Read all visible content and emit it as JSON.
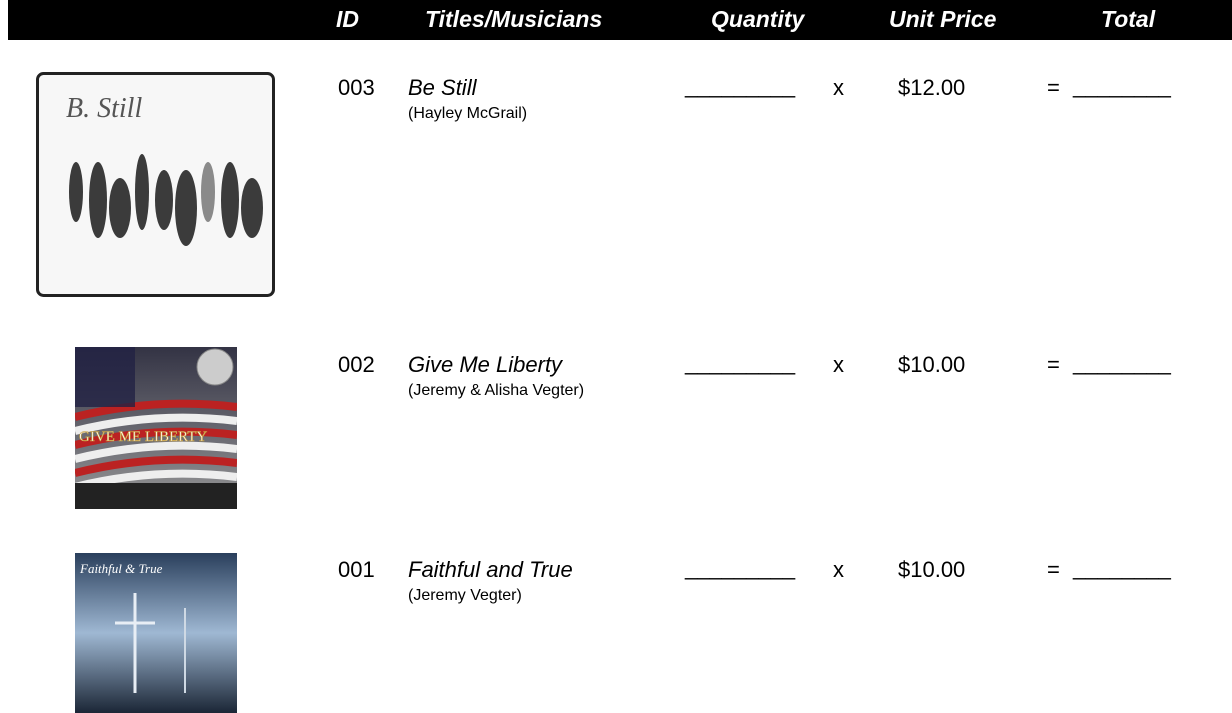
{
  "header": {
    "id": "ID",
    "title": "Titles/Musicians",
    "quantity": "Quantity",
    "unit_price": "Unit Price",
    "total": "Total"
  },
  "items": [
    {
      "cover_text": "B. Still",
      "id": "003",
      "title": "Be Still",
      "musicians": "(Hayley McGrail)",
      "quantity_blank": "_________",
      "times": "x",
      "price": "$12.00",
      "equals": "=",
      "total_blank": "________"
    },
    {
      "cover_text": "GIVE ME LIBERTY",
      "id": "002",
      "title": "Give Me Liberty",
      "musicians": "(Jeremy & Alisha Vegter)",
      "quantity_blank": "_________",
      "times": "x",
      "price": "$10.00",
      "equals": "=",
      "total_blank": "________"
    },
    {
      "cover_text": "Faithful & True",
      "id": "001",
      "title": "Faithful and True",
      "musicians": "(Jeremy Vegter)",
      "quantity_blank": "_________",
      "times": "x",
      "price": "$10.00",
      "equals": "=",
      "total_blank": "________"
    }
  ]
}
